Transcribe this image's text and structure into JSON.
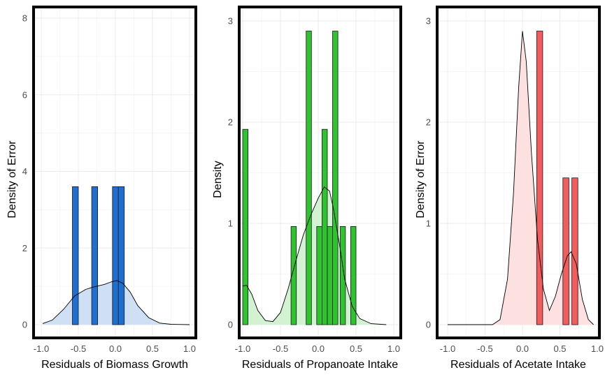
{
  "chart_data": [
    {
      "type": "histogram+density",
      "xlabel": "Residuals of Biomass Growth",
      "ylabel": "Density of Error",
      "xlim": [
        -1.0,
        1.0
      ],
      "ylim": [
        0,
        8
      ],
      "xticks": [
        -1.0,
        -0.5,
        0.0,
        0.5,
        1.0
      ],
      "yticks": [
        0,
        2,
        4,
        6,
        8
      ],
      "xtick_labels": [
        "-1.0",
        "-0.5",
        "0.0",
        "0.5",
        "1.0"
      ],
      "ytick_labels": [
        "0",
        "2",
        "4",
        "6",
        "8"
      ],
      "grid": true,
      "bar_color": "#1f6fd1",
      "density_fill": "#cfe0f5",
      "bars": [
        {
          "x0": -0.58,
          "x1": -0.5,
          "y": 3.6
        },
        {
          "x0": -0.32,
          "x1": -0.24,
          "y": 3.6
        },
        {
          "x0": -0.04,
          "x1": 0.04,
          "y": 3.6
        },
        {
          "x0": 0.04,
          "x1": 0.12,
          "y": 3.6
        }
      ],
      "density": [
        [
          -0.98,
          0.03
        ],
        [
          -0.85,
          0.12
        ],
        [
          -0.7,
          0.4
        ],
        [
          -0.55,
          0.75
        ],
        [
          -0.4,
          0.92
        ],
        [
          -0.3,
          0.98
        ],
        [
          -0.15,
          1.05
        ],
        [
          -0.05,
          1.12
        ],
        [
          0.02,
          1.15
        ],
        [
          0.1,
          1.08
        ],
        [
          0.2,
          0.85
        ],
        [
          0.3,
          0.5
        ],
        [
          0.45,
          0.18
        ],
        [
          0.6,
          0.04
        ],
        [
          0.75,
          0.01
        ],
        [
          1.0,
          0.0
        ]
      ]
    },
    {
      "type": "histogram+density",
      "xlabel": "Residuals of Propanoate Intake",
      "ylabel": "Density",
      "xlim": [
        -1.0,
        1.0
      ],
      "ylim": [
        0,
        3
      ],
      "xticks": [
        -1.0,
        -0.5,
        0.0,
        0.5,
        1.0
      ],
      "yticks": [
        0,
        1,
        2,
        3
      ],
      "xtick_labels": [
        "-1.0",
        "-0.5",
        "0.0",
        "0.5",
        "1.0"
      ],
      "ytick_labels": [
        "0",
        "1",
        "2",
        "3"
      ],
      "grid": true,
      "bar_color": "#2fc42f",
      "density_fill": "#d2f2d2",
      "bars": [
        {
          "x0": -1.0,
          "x1": -0.93,
          "y": 1.93
        },
        {
          "x0": -0.36,
          "x1": -0.29,
          "y": 0.97
        },
        {
          "x0": -0.16,
          "x1": -0.09,
          "y": 2.9
        },
        {
          "x0": -0.02,
          "x1": 0.05,
          "y": 0.97
        },
        {
          "x0": 0.05,
          "x1": 0.12,
          "y": 1.93
        },
        {
          "x0": 0.12,
          "x1": 0.19,
          "y": 0.97
        },
        {
          "x0": 0.19,
          "x1": 0.26,
          "y": 2.9
        },
        {
          "x0": 0.29,
          "x1": 0.36,
          "y": 0.97
        },
        {
          "x0": 0.43,
          "x1": 0.5,
          "y": 0.97
        }
      ],
      "density": [
        [
          -1.0,
          0.38
        ],
        [
          -0.95,
          0.39
        ],
        [
          -0.88,
          0.3
        ],
        [
          -0.8,
          0.14
        ],
        [
          -0.7,
          0.04
        ],
        [
          -0.6,
          0.03
        ],
        [
          -0.5,
          0.12
        ],
        [
          -0.4,
          0.35
        ],
        [
          -0.3,
          0.62
        ],
        [
          -0.2,
          0.88
        ],
        [
          -0.1,
          1.08
        ],
        [
          0.0,
          1.25
        ],
        [
          0.08,
          1.36
        ],
        [
          0.15,
          1.32
        ],
        [
          0.2,
          1.15
        ],
        [
          0.28,
          0.8
        ],
        [
          0.35,
          0.45
        ],
        [
          0.45,
          0.18
        ],
        [
          0.55,
          0.06
        ],
        [
          0.7,
          0.01
        ],
        [
          0.9,
          0.0
        ]
      ]
    },
    {
      "type": "histogram+density",
      "xlabel": "Residuals of Acetate Intake",
      "ylabel": "Density of Error",
      "xlim": [
        -1.0,
        1.0
      ],
      "ylim": [
        0,
        3
      ],
      "xticks": [
        -1.0,
        -0.5,
        0.0,
        0.5,
        1.0
      ],
      "yticks": [
        0,
        1,
        2,
        3
      ],
      "xtick_labels": [
        "-1.0",
        "-0.5",
        "0.0",
        "0.5",
        "1.0"
      ],
      "ytick_labels": [
        "0",
        "1",
        "2",
        "3"
      ],
      "grid": true,
      "bar_color": "#f25c5c",
      "density_fill": "#fde0e0",
      "bars": [
        {
          "x0": 0.19,
          "x1": 0.27,
          "y": 2.9
        },
        {
          "x0": 0.54,
          "x1": 0.62,
          "y": 1.45
        },
        {
          "x0": 0.66,
          "x1": 0.74,
          "y": 1.45
        }
      ],
      "density": [
        [
          -1.0,
          0.0
        ],
        [
          -0.6,
          0.0
        ],
        [
          -0.4,
          0.0
        ],
        [
          -0.3,
          0.05
        ],
        [
          -0.2,
          0.45
        ],
        [
          -0.12,
          1.3
        ],
        [
          -0.05,
          2.35
        ],
        [
          0.0,
          2.9
        ],
        [
          0.05,
          2.6
        ],
        [
          0.12,
          1.7
        ],
        [
          0.2,
          0.85
        ],
        [
          0.28,
          0.35
        ],
        [
          0.36,
          0.14
        ],
        [
          0.44,
          0.28
        ],
        [
          0.52,
          0.5
        ],
        [
          0.6,
          0.68
        ],
        [
          0.65,
          0.72
        ],
        [
          0.72,
          0.6
        ],
        [
          0.8,
          0.25
        ],
        [
          0.88,
          0.05
        ],
        [
          0.95,
          0.0
        ]
      ]
    }
  ]
}
